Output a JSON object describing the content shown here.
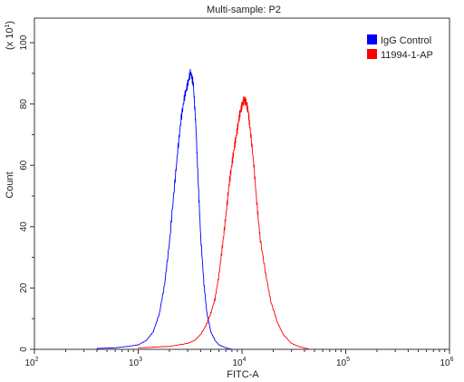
{
  "chart_data": {
    "type": "line",
    "title": "Multi-sample: P2",
    "xlabel": "FITC-A",
    "ylabel": "Count",
    "y_multiplier_label": "(x 10",
    "y_multiplier_exponent": "1",
    "x_scale": "log",
    "xlim": [
      100,
      1000000
    ],
    "ylim": [
      0,
      108
    ],
    "x_ticks": [
      {
        "base": "10",
        "exp": "2",
        "value": 100
      },
      {
        "base": "10",
        "exp": "3",
        "value": 1000
      },
      {
        "base": "10",
        "exp": "4",
        "value": 10000
      },
      {
        "base": "10",
        "exp": "5",
        "value": 100000
      },
      {
        "base": "10",
        "exp": "6",
        "value": 1000000
      }
    ],
    "y_ticks": [
      "0",
      "20",
      "40",
      "60",
      "80",
      "100"
    ],
    "y_tick_values": [
      0,
      20,
      40,
      60,
      80,
      100
    ],
    "legend_position": "top-right",
    "series": [
      {
        "name": "IgG Control",
        "color": "#0000ff",
        "x": [
          400,
          600,
          800,
          1000,
          1200,
          1400,
          1600,
          1800,
          2000,
          2200,
          2400,
          2600,
          2800,
          3000,
          3200,
          3400,
          3600,
          3800,
          4000,
          4300,
          4600,
          5000,
          5500,
          6000,
          7000,
          8000
        ],
        "y": [
          0.3,
          0.5,
          1,
          1.5,
          3,
          6,
          12,
          22,
          36,
          52,
          66,
          77,
          84,
          88,
          92,
          88,
          74,
          55,
          38,
          22,
          12,
          6,
          3,
          1.5,
          0.5,
          0
        ]
      },
      {
        "name": "11994-1-AP",
        "color": "#ff0000",
        "x": [
          1000,
          2000,
          3000,
          3500,
          4000,
          4500,
          5000,
          5500,
          6000,
          6500,
          7000,
          7500,
          8000,
          8500,
          9000,
          9500,
          10000,
          10500,
          11000,
          11500,
          12000,
          13000,
          14000,
          15000,
          17000,
          19000,
          22000,
          25000,
          30000,
          35000,
          45000
        ],
        "y": [
          0.5,
          1,
          2,
          3,
          5,
          8,
          12,
          17,
          25,
          35,
          45,
          55,
          62,
          68,
          73,
          78,
          81,
          83,
          82,
          79,
          73,
          62,
          48,
          37,
          25,
          16,
          9,
          5,
          2,
          1,
          0
        ]
      }
    ]
  }
}
